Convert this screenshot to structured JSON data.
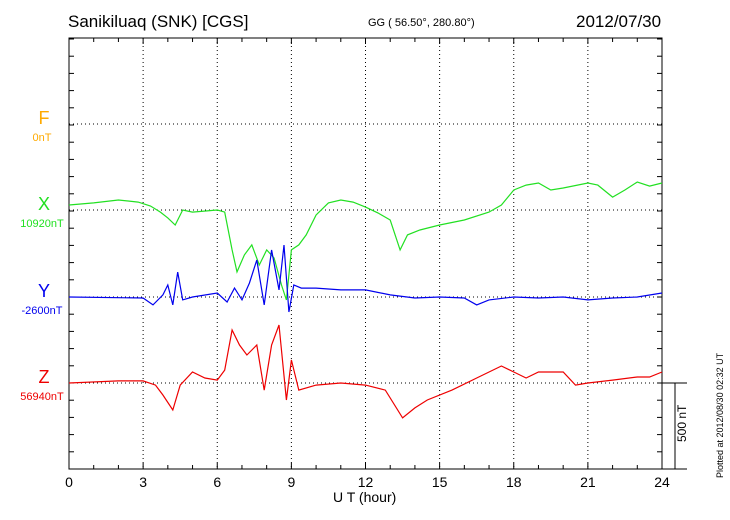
{
  "header": {
    "station": "Sanikiluaq (SNK)  [CGS]",
    "coords": "GG ( 56.50°, 280.80°)",
    "date": "2012/07/30"
  },
  "footer": {
    "plotted": "Plotted at 2012/08/30 02:32 UT",
    "scale_label": "500 nT"
  },
  "chart_data": {
    "type": "line",
    "xlabel": "U T (hour)",
    "xlim": [
      0,
      24
    ],
    "xticks": [
      "0",
      "3",
      "6",
      "9",
      "12",
      "15",
      "18",
      "21",
      "24"
    ],
    "scale_nT": 500,
    "grid": true,
    "series": [
      {
        "name": "F",
        "baseline": "0nT",
        "color": "#ffaa00",
        "values": []
      },
      {
        "name": "X",
        "baseline": "10920nT",
        "color": "#22e022",
        "values": [
          [
            0,
            29
          ],
          [
            1,
            41
          ],
          [
            2,
            58
          ],
          [
            2.8,
            46
          ],
          [
            3.3,
            23
          ],
          [
            3.7,
            -12
          ],
          [
            4.0,
            -46
          ],
          [
            4.3,
            -87
          ],
          [
            4.6,
            0
          ],
          [
            5,
            -12
          ],
          [
            6,
            0
          ],
          [
            6.3,
            -12
          ],
          [
            6.6,
            -232
          ],
          [
            6.8,
            -360
          ],
          [
            7.1,
            -261
          ],
          [
            7.4,
            -203
          ],
          [
            7.7,
            -320
          ],
          [
            8.0,
            -232
          ],
          [
            8.3,
            -279
          ],
          [
            8.6,
            -436
          ],
          [
            8.8,
            -523
          ],
          [
            9.0,
            -232
          ],
          [
            9.3,
            -203
          ],
          [
            9.6,
            -145
          ],
          [
            10,
            -29
          ],
          [
            10.5,
            41
          ],
          [
            11,
            58
          ],
          [
            11.5,
            46
          ],
          [
            12,
            17
          ],
          [
            12.5,
            -17
          ],
          [
            13,
            -58
          ],
          [
            13.4,
            -232
          ],
          [
            13.7,
            -145
          ],
          [
            14.2,
            -116
          ],
          [
            15,
            -87
          ],
          [
            16,
            -58
          ],
          [
            17,
            -12
          ],
          [
            17.5,
            29
          ],
          [
            18,
            116
          ],
          [
            18.5,
            145
          ],
          [
            19,
            157
          ],
          [
            19.5,
            116
          ],
          [
            20,
            128
          ],
          [
            21,
            157
          ],
          [
            21.4,
            145
          ],
          [
            22,
            75
          ],
          [
            22.5,
            116
          ],
          [
            23,
            163
          ],
          [
            23.5,
            139
          ],
          [
            24,
            157
          ]
        ]
      },
      {
        "name": "Y",
        "baseline": "-2600nT",
        "color": "#0000ee",
        "values": [
          [
            0,
            0
          ],
          [
            3,
            -6
          ],
          [
            3.4,
            -46
          ],
          [
            3.8,
            12
          ],
          [
            4.0,
            70
          ],
          [
            4.2,
            -46
          ],
          [
            4.4,
            145
          ],
          [
            4.6,
            -17
          ],
          [
            5,
            0
          ],
          [
            6,
            23
          ],
          [
            6.4,
            -29
          ],
          [
            6.7,
            52
          ],
          [
            7.0,
            -17
          ],
          [
            7.3,
            81
          ],
          [
            7.6,
            215
          ],
          [
            7.9,
            -46
          ],
          [
            8.2,
            273
          ],
          [
            8.5,
            41
          ],
          [
            8.7,
            302
          ],
          [
            8.9,
            -87
          ],
          [
            9.1,
            70
          ],
          [
            9.4,
            52
          ],
          [
            10,
            52
          ],
          [
            11,
            41
          ],
          [
            12,
            41
          ],
          [
            13,
            12
          ],
          [
            14,
            -6
          ],
          [
            15,
            0
          ],
          [
            16,
            -6
          ],
          [
            16.5,
            -46
          ],
          [
            17,
            -17
          ],
          [
            18,
            0
          ],
          [
            19,
            -6
          ],
          [
            20,
            0
          ],
          [
            21,
            -17
          ],
          [
            22,
            -6
          ],
          [
            23,
            0
          ],
          [
            24,
            23
          ]
        ]
      },
      {
        "name": "Z",
        "baseline": "56940nT",
        "color": "#ee0000",
        "values": [
          [
            0,
            0
          ],
          [
            2,
            12
          ],
          [
            3,
            12
          ],
          [
            3.5,
            -12
          ],
          [
            3.8,
            -70
          ],
          [
            4.2,
            -157
          ],
          [
            4.5,
            -12
          ],
          [
            5,
            64
          ],
          [
            5.5,
            29
          ],
          [
            6,
            17
          ],
          [
            6.3,
            75
          ],
          [
            6.6,
            308
          ],
          [
            6.9,
            221
          ],
          [
            7.2,
            163
          ],
          [
            7.6,
            221
          ],
          [
            7.9,
            -41
          ],
          [
            8.2,
            221
          ],
          [
            8.5,
            337
          ],
          [
            8.8,
            -99
          ],
          [
            9.0,
            134
          ],
          [
            9.3,
            -41
          ],
          [
            10,
            -12
          ],
          [
            11,
            0
          ],
          [
            12,
            -12
          ],
          [
            12.8,
            -41
          ],
          [
            13.5,
            -203
          ],
          [
            14,
            -145
          ],
          [
            14.5,
            -99
          ],
          [
            15.5,
            -41
          ],
          [
            16.5,
            29
          ],
          [
            17.5,
            99
          ],
          [
            18,
            64
          ],
          [
            18.5,
            29
          ],
          [
            19,
            64
          ],
          [
            20,
            64
          ],
          [
            20.5,
            -12
          ],
          [
            21,
            0
          ],
          [
            22,
            17
          ],
          [
            23,
            35
          ],
          [
            23.5,
            35
          ],
          [
            24,
            64
          ]
        ]
      }
    ]
  }
}
